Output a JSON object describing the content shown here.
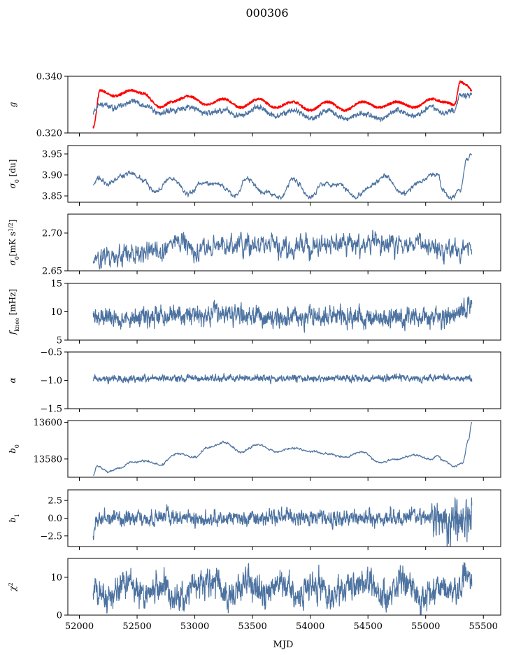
{
  "chart_data": {
    "type": "line",
    "title": "000306",
    "xlabel": "MJD",
    "xlim": [
      51900,
      55650
    ],
    "xticks": [
      52000,
      52500,
      53000,
      53500,
      54000,
      54500,
      55000,
      55500
    ],
    "xtick_labels": [
      "52000",
      "52500",
      "53000",
      "53500",
      "54000",
      "54500",
      "55000",
      "55500"
    ],
    "x_start": 52120,
    "x_end": 55400,
    "colors": {
      "series": "#4c72a0",
      "highlight": "#ff0000"
    },
    "panels": [
      {
        "ylabel": "g",
        "ylim": [
          0.32,
          0.34
        ],
        "yticks": [
          0.32,
          0.34
        ],
        "ytick_labels": [
          "0.320",
          "0.340"
        ],
        "series": [
          {
            "color": "#ff0000",
            "x": [
              52120,
              52180,
              52300,
              52450,
              52550,
              52700,
              52800,
              52950,
              53100,
              53250,
              53400,
              53550,
              53700,
              53850,
              54000,
              54150,
              54300,
              54450,
              54600,
              54750,
              54900,
              55050,
              55150,
              55250,
              55300,
              55350,
              55400
            ],
            "values": [
              0.322,
              0.335,
              0.333,
              0.335,
              0.334,
              0.329,
              0.331,
              0.333,
              0.33,
              0.332,
              0.329,
              0.332,
              0.329,
              0.331,
              0.328,
              0.331,
              0.328,
              0.331,
              0.329,
              0.331,
              0.329,
              0.332,
              0.331,
              0.33,
              0.338,
              0.337,
              0.335
            ]
          },
          {
            "color": "#4c72a0",
            "x": [
              52120,
              52180,
              52300,
              52450,
              52550,
              52700,
              52800,
              52950,
              53100,
              53250,
              53400,
              53550,
              53700,
              53850,
              54000,
              54150,
              54300,
              54450,
              54600,
              54750,
              54900,
              55050,
              55150,
              55250,
              55300,
              55350,
              55400
            ],
            "values": [
              0.327,
              0.33,
              0.329,
              0.331,
              0.33,
              0.327,
              0.328,
              0.329,
              0.327,
              0.328,
              0.326,
              0.329,
              0.326,
              0.328,
              0.325,
              0.328,
              0.325,
              0.327,
              0.325,
              0.328,
              0.326,
              0.329,
              0.327,
              0.328,
              0.334,
              0.333,
              0.334
            ]
          }
        ]
      },
      {
        "ylabel": "σ0 [du]",
        "ylim": [
          3.835,
          3.97
        ],
        "yticks": [
          3.85,
          3.9,
          3.95
        ],
        "ytick_labels": [
          "3.85",
          "3.90",
          "3.95"
        ],
        "series": [
          {
            "color": "#4c72a0",
            "x": [
              52120,
              52160,
              52250,
              52350,
              52430,
              52550,
              52650,
              52800,
              52950,
              53050,
              53200,
              53350,
              53450,
              53600,
              53750,
              53850,
              54000,
              54100,
              54250,
              54400,
              54500,
              54650,
              54800,
              54950,
              55050,
              55100,
              55150,
              55220,
              55300,
              55350,
              55400
            ],
            "values": [
              3.875,
              3.895,
              3.878,
              3.895,
              3.905,
              3.888,
              3.86,
              3.892,
              3.855,
              3.88,
              3.878,
              3.85,
              3.892,
              3.858,
              3.848,
              3.892,
              3.845,
              3.88,
              3.878,
              3.848,
              3.872,
              3.895,
              3.855,
              3.882,
              3.9,
              3.905,
              3.865,
              3.845,
              3.865,
              3.935,
              3.948
            ]
          }
        ]
      },
      {
        "ylabel": "σ0[mK s^1/2]",
        "ylim": [
          2.65,
          2.725
        ],
        "yticks": [
          2.65,
          2.7
        ],
        "ytick_labels": [
          "2.65",
          "2.70"
        ],
        "series": [
          {
            "color": "#4c72a0",
            "x": [
              52120,
              52300,
              52500,
              52700,
              52900,
              53000,
              53200,
              53400,
              53600,
              53800,
              54000,
              54200,
              54400,
              54600,
              54800,
              55000,
              55200,
              55400
            ],
            "values": [
              2.665,
              2.668,
              2.673,
              2.677,
              2.69,
              2.678,
              2.682,
              2.683,
              2.684,
              2.68,
              2.682,
              2.684,
              2.685,
              2.686,
              2.685,
              2.684,
              2.682,
              2.678
            ]
          }
        ]
      },
      {
        "ylabel": "fknee [mHz]",
        "ylim": [
          5,
          15
        ],
        "yticks": [
          5,
          10,
          15
        ],
        "ytick_labels": [
          "5",
          "10",
          "15"
        ],
        "series": [
          {
            "color": "#4c72a0",
            "x": [
              52120,
              52400,
              52700,
              53000,
              53200,
              53500,
              53800,
              54100,
              54400,
              54700,
              55000,
              55200,
              55300,
              55350,
              55400
            ],
            "values": [
              8.8,
              9.0,
              9.2,
              9.3,
              9.8,
              9.2,
              9.3,
              9.1,
              9.0,
              9.0,
              9.0,
              9.0,
              9.4,
              11.0,
              12.0
            ]
          }
        ]
      },
      {
        "ylabel": "α",
        "ylim": [
          -1.5,
          -0.5
        ],
        "yticks": [
          -1.5,
          -1.0,
          -0.5
        ],
        "ytick_labels": [
          "−1.5",
          "−1.0",
          "−0.5"
        ],
        "series": [
          {
            "color": "#4c72a0",
            "x": [
              52120,
              52600,
              53100,
              53600,
              54100,
              54600,
              55100,
              55400
            ],
            "values": [
              -0.97,
              -0.97,
              -0.96,
              -0.96,
              -0.97,
              -0.96,
              -0.96,
              -0.97
            ]
          }
        ]
      },
      {
        "ylabel": "b0",
        "ylim": [
          13570,
          13601
        ],
        "yticks": [
          13580,
          13600
        ],
        "ytick_labels": [
          "13580",
          "13600"
        ],
        "series": [
          {
            "color": "#4c72a0",
            "x": [
              52120,
              52150,
              52250,
              52350,
              52450,
              52550,
              52700,
              52850,
              53000,
              53100,
              53250,
              53400,
              53550,
              53700,
              53850,
              54000,
              54150,
              54300,
              54450,
              54600,
              54750,
              54900,
              55050,
              55100,
              55150,
              55250,
              55320,
              55370,
              55400
            ],
            "values": [
              13571,
              13576,
              13573,
              13575,
              13578,
              13579,
              13577,
              13583,
              13581,
              13586,
              13589,
              13584,
              13588,
              13584,
              13586,
              13584,
              13583,
              13581,
              13584,
              13578,
              13580,
              13582,
              13580,
              13582,
              13579,
              13576,
              13578,
              13590,
              13600
            ]
          }
        ]
      },
      {
        "ylabel": "b1",
        "ylim": [
          -4,
          4
        ],
        "yticks": [
          -2.5,
          0.0,
          2.5
        ],
        "ytick_labels": [
          "−2.5",
          "0.0",
          "2.5"
        ],
        "series": [
          {
            "color": "#4c72a0",
            "x": [
              52120,
              52140,
              52300,
              52700,
              53100,
              53500,
              53900,
              54300,
              54700,
              55000,
              55200,
              55400
            ],
            "values": [
              -2.7,
              -0.3,
              0.0,
              0.1,
              0.0,
              0.0,
              0.1,
              0.0,
              0.1,
              0.2,
              0.0,
              0.1
            ]
          }
        ]
      },
      {
        "ylabel": "χ2",
        "ylim": [
          0,
          15
        ],
        "yticks": [
          0,
          10
        ],
        "ytick_labels": [
          "0",
          "10"
        ],
        "series": [
          {
            "color": "#4c72a0",
            "x": [
              52120,
              52250,
              52400,
              52550,
              52700,
              52850,
              53000,
              53150,
              53300,
              53450,
              53600,
              53750,
              53900,
              54050,
              54200,
              54350,
              54500,
              54650,
              54800,
              54950,
              55100,
              55250,
              55350,
              55400
            ],
            "values": [
              6.5,
              5.0,
              8.5,
              5.0,
              8.0,
              4.5,
              8.5,
              9.0,
              5.0,
              9.5,
              5.5,
              8.5,
              5.0,
              8.0,
              4.5,
              8.0,
              8.5,
              5.0,
              8.0,
              4.5,
              7.5,
              5.5,
              11.0,
              8.0
            ]
          }
        ]
      }
    ]
  }
}
